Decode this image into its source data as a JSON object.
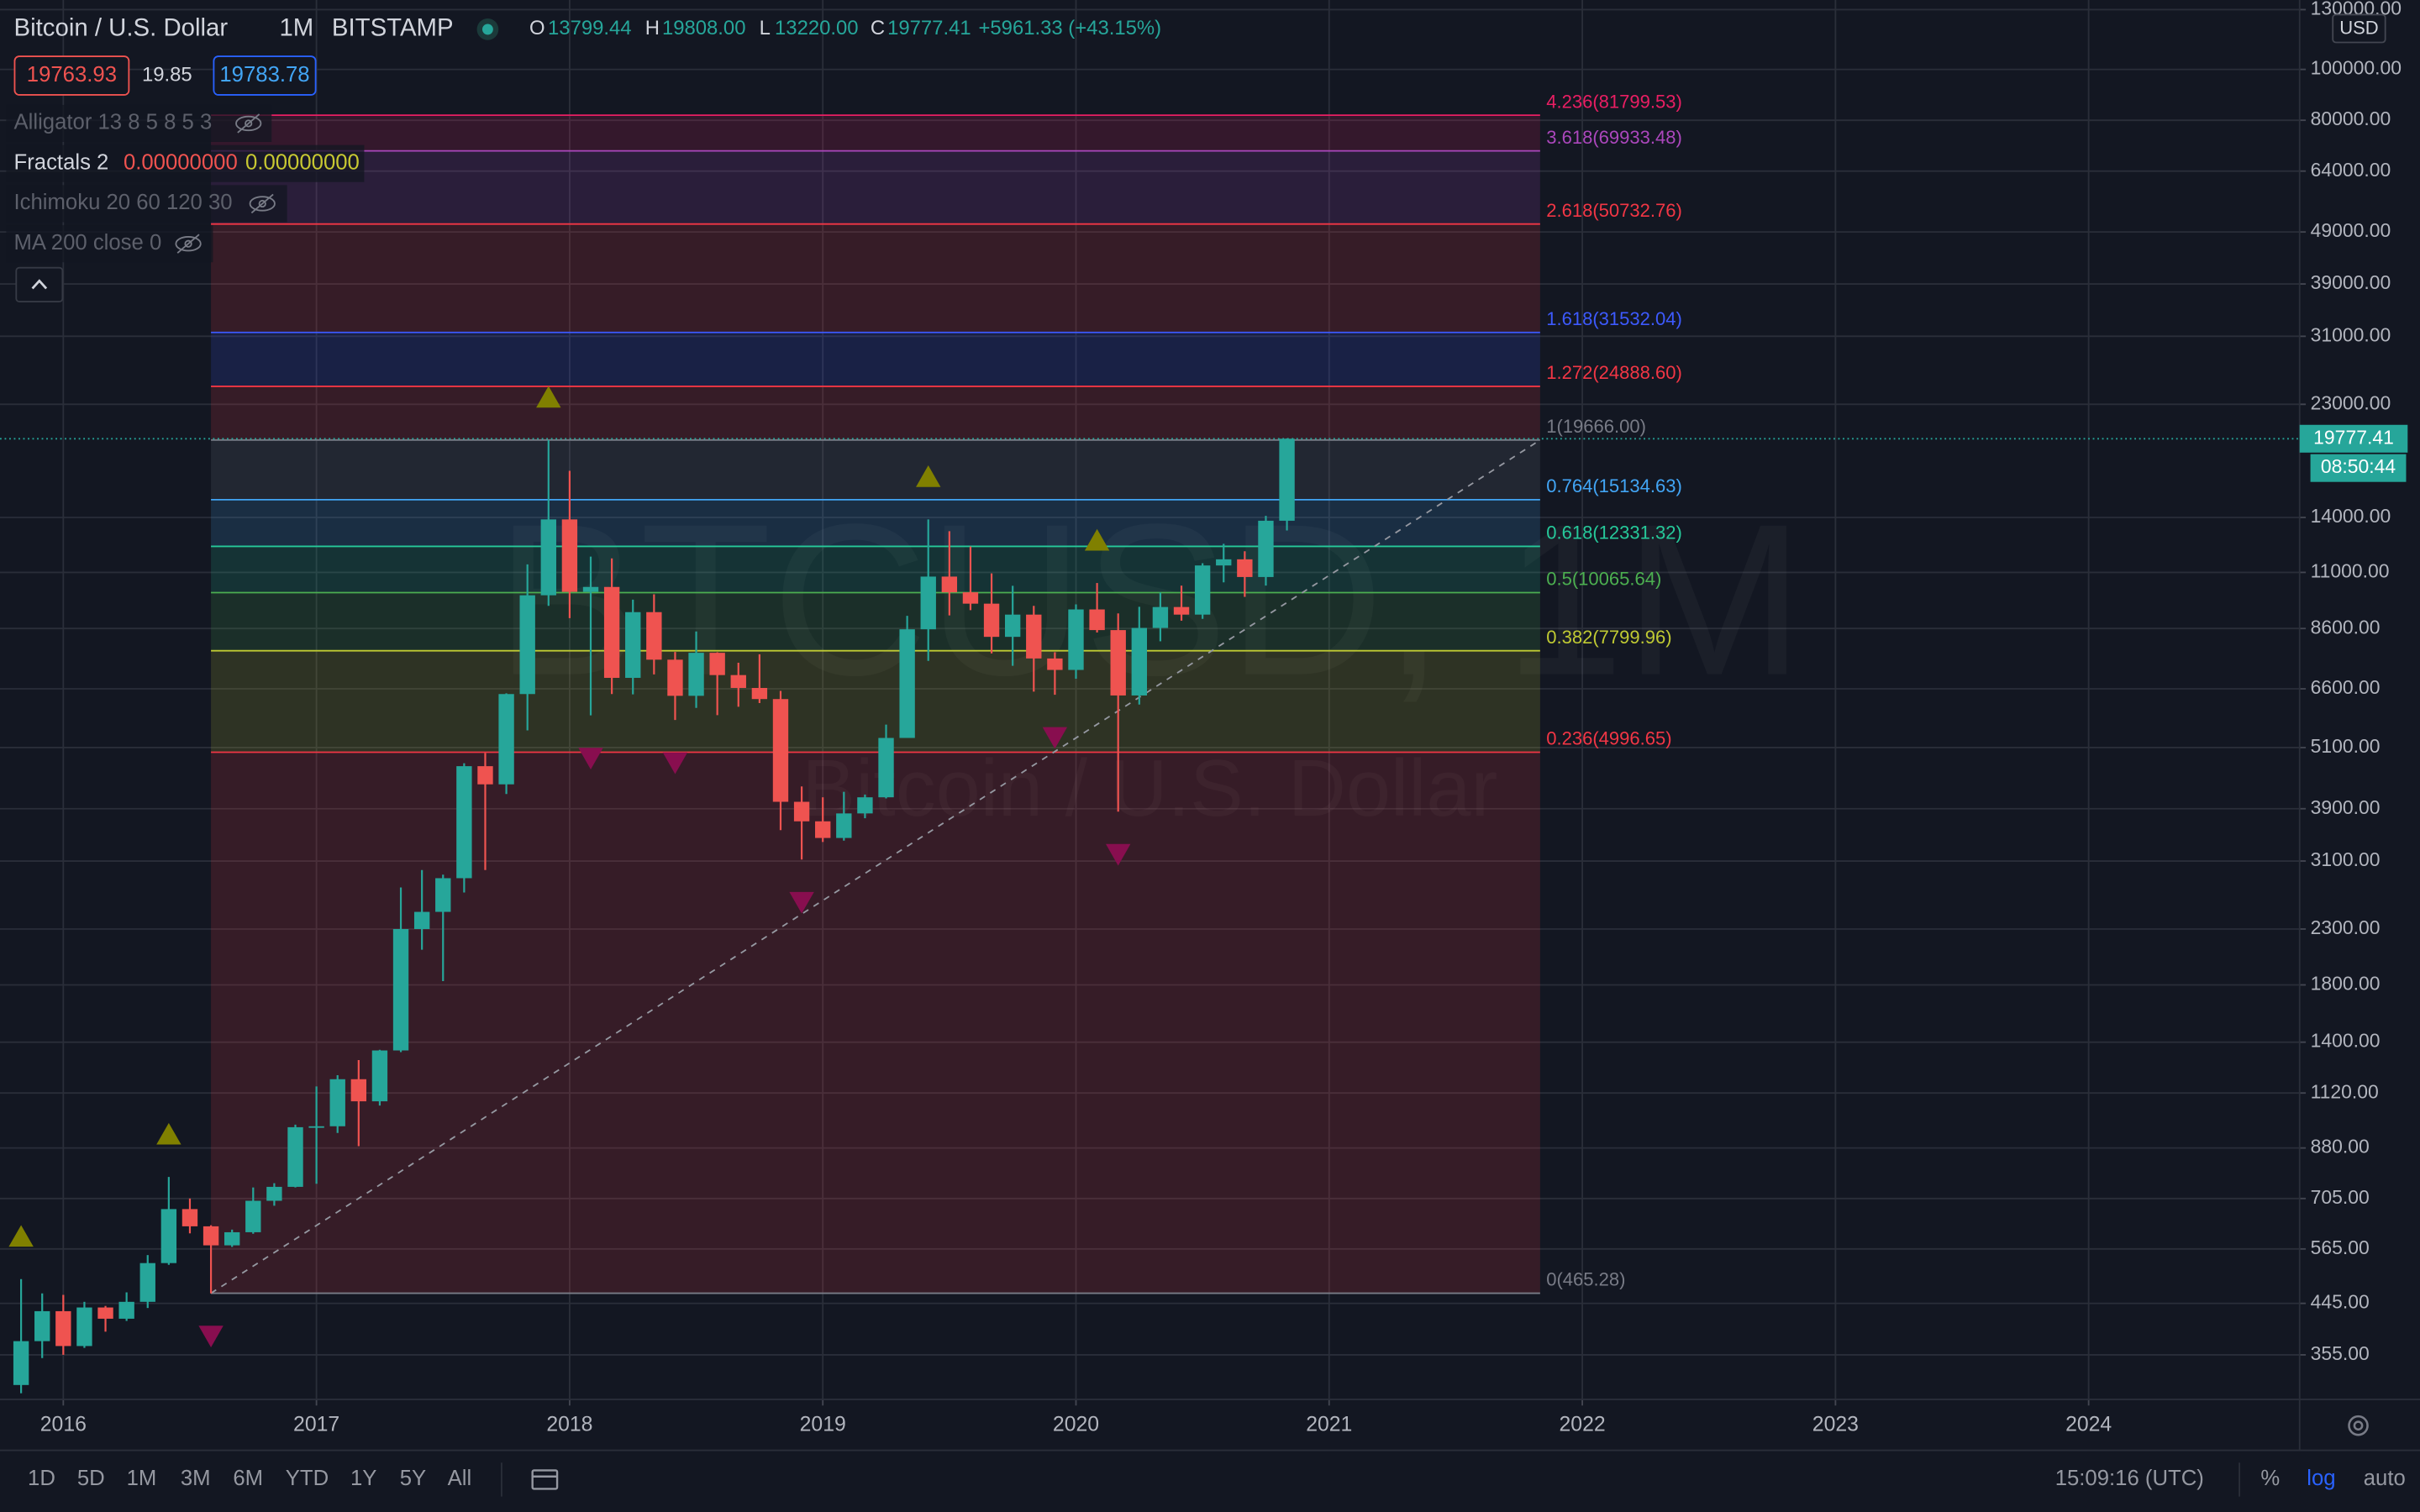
{
  "header": {
    "title": "Bitcoin / U.S. Dollar",
    "interval": "1M",
    "exchange": "BITSTAMP",
    "ohlc": [
      {
        "label": "O",
        "value": "13799.44"
      },
      {
        "label": "H",
        "value": "19808.00"
      },
      {
        "label": "L",
        "value": "13220.00"
      },
      {
        "label": "C",
        "value": "19777.41"
      }
    ],
    "change": "+5961.33 (+43.15%)"
  },
  "order_panel": {
    "sell": "19763.93",
    "spread": "19.85",
    "buy": "19783.78"
  },
  "indicators": [
    {
      "name": "Alligator 13 8 5 8 5 3"
    },
    {
      "name": "Fractals 2",
      "values": [
        "0.00000000",
        "0.00000000"
      ]
    },
    {
      "name": "Ichimoku 20 60 120 30"
    },
    {
      "name": "MA 200 close 0"
    }
  ],
  "watermark": {
    "symbol": "BTCUSD, 1M"
  },
  "toolbar": {
    "ranges": [
      "1D",
      "5D",
      "1M",
      "3M",
      "6M",
      "YTD",
      "1Y",
      "5Y",
      "All"
    ],
    "clock": "15:09:16 (UTC)",
    "scale_buttons": [
      "%",
      "log",
      "auto"
    ]
  },
  "chart_data": {
    "type": "candlestick",
    "currency": "USD",
    "log_scale": true,
    "grid": true,
    "up_color": "#26a69a",
    "down_color": "#ef5350",
    "xlim": [
      "2015-10",
      "2024-11"
    ],
    "xticks": [
      "2016",
      "2017",
      "2018",
      "2019",
      "2020",
      "2021",
      "2022",
      "2023",
      "2024"
    ],
    "ylim": [
      292,
      135600
    ],
    "yticks": [
      {
        "value": 130000,
        "label": "130000.00"
      },
      {
        "value": 100000,
        "label": "100000.00"
      },
      {
        "value": 80000,
        "label": "80000.00"
      },
      {
        "value": 64000,
        "label": "64000.00"
      },
      {
        "value": 49000,
        "label": "49000.00"
      },
      {
        "value": 39000,
        "label": "39000.00"
      },
      {
        "value": 31000,
        "label": "31000.00"
      },
      {
        "value": 23000,
        "label": "23000.00"
      },
      {
        "value": 14000,
        "label": "14000.00"
      },
      {
        "value": 11000,
        "label": "11000.00"
      },
      {
        "value": 8600,
        "label": "8600.00"
      },
      {
        "value": 6600,
        "label": "6600.00"
      },
      {
        "value": 5100,
        "label": "5100.00"
      },
      {
        "value": 3900,
        "label": "3900.00"
      },
      {
        "value": 3100,
        "label": "3100.00"
      },
      {
        "value": 2300,
        "label": "2300.00"
      },
      {
        "value": 1800,
        "label": "1800.00"
      },
      {
        "value": 1400,
        "label": "1400.00"
      },
      {
        "value": 1120,
        "label": "1120.00"
      },
      {
        "value": 880,
        "label": "880.00"
      },
      {
        "value": 705,
        "label": "705.00"
      },
      {
        "value": 565,
        "label": "565.00"
      },
      {
        "value": 445,
        "label": "445.00"
      },
      {
        "value": 355,
        "label": "355.00"
      }
    ],
    "last_price": 19777.41,
    "countdown": "08:50:44",
    "candles": {
      "x": [
        "2015-11",
        "2015-12",
        "2016-01",
        "2016-02",
        "2016-03",
        "2016-04",
        "2016-05",
        "2016-06",
        "2016-07",
        "2016-08",
        "2016-09",
        "2016-10",
        "2016-11",
        "2016-12",
        "2017-01",
        "2017-02",
        "2017-03",
        "2017-04",
        "2017-05",
        "2017-06",
        "2017-07",
        "2017-08",
        "2017-09",
        "2017-10",
        "2017-11",
        "2017-12",
        "2018-01",
        "2018-02",
        "2018-03",
        "2018-04",
        "2018-05",
        "2018-06",
        "2018-07",
        "2018-08",
        "2018-09",
        "2018-10",
        "2018-11",
        "2018-12",
        "2019-01",
        "2019-02",
        "2019-03",
        "2019-04",
        "2019-05",
        "2019-06",
        "2019-07",
        "2019-08",
        "2019-09",
        "2019-10",
        "2019-11",
        "2019-12",
        "2020-01",
        "2020-02",
        "2020-03",
        "2020-04",
        "2020-05",
        "2020-06",
        "2020-07",
        "2020-08",
        "2020-09",
        "2020-10",
        "2020-11"
      ],
      "open": [
        311,
        377,
        430,
        369,
        437,
        416,
        448,
        531,
        673,
        624,
        574,
        608,
        698,
        742,
        964,
        968,
        1190,
        1080,
        1350,
        2300,
        2480,
        2875,
        4700,
        4340,
        6450,
        9950,
        13880,
        10100,
        10320,
        6925,
        9240,
        7500,
        6400,
        7730,
        7010,
        6625,
        6310,
        4020,
        3690,
        3430,
        3820,
        4100,
        5320,
        8570,
        10800,
        10080,
        9590,
        8290,
        9140,
        7540,
        7170,
        9350,
        8540,
        6410,
        8620,
        9450,
        9140,
        11340,
        11650,
        10780,
        13799.44
      ],
      "high": [
        495,
        465,
        462,
        448,
        440,
        467,
        550,
        775,
        705,
        627,
        615,
        740,
        754,
        975,
        1153,
        1211,
        1294,
        1354,
        2760,
        2980,
        2920,
        4760,
        4980,
        6470,
        11395,
        19666,
        17180,
        11790,
        11700,
        9760,
        9990,
        7760,
        8490,
        7750,
        7400,
        7680,
        6540,
        4300,
        4100,
        4200,
        4150,
        5640,
        9090,
        13880,
        13180,
        12320,
        10950,
        10370,
        9500,
        7750,
        9560,
        10500,
        9190,
        9460,
        10070,
        10380,
        11450,
        12470,
        12070,
        14100,
        19808
      ],
      "low": [
        300,
        350,
        355,
        366,
        393,
        412,
        436,
        527,
        605,
        465,
        570,
        604,
        683,
        740,
        752,
        940,
        887,
        1060,
        1340,
        2100,
        1830,
        2700,
        2980,
        4160,
        5500,
        9500,
        9000,
        5873,
        6450,
        6440,
        7030,
        5755,
        6070,
        5880,
        6100,
        6200,
        3550,
        3120,
        3370,
        3390,
        3740,
        4080,
        5320,
        7460,
        9110,
        9320,
        7710,
        7300,
        6520,
        6430,
        6900,
        8450,
        3850,
        6160,
        8130,
        8900,
        8970,
        10530,
        9880,
        10380,
        13220
      ],
      "close": [
        377,
        430,
        369,
        437,
        416,
        448,
        531,
        673,
        624,
        574,
        608,
        698,
        742,
        964,
        968,
        1190,
        1080,
        1350,
        2300,
        2480,
        2875,
        4700,
        4340,
        6450,
        9950,
        13880,
        10100,
        10320,
        6925,
        9240,
        7500,
        6400,
        7730,
        7010,
        6625,
        6310,
        4020,
        3690,
        3430,
        3820,
        4100,
        5320,
        8570,
        10800,
        10080,
        9590,
        8290,
        9140,
        7540,
        7170,
        9350,
        8540,
        6410,
        8620,
        9450,
        9140,
        11340,
        11650,
        10780,
        13800,
        19777.41
      ]
    },
    "fractals": {
      "up_color": "#808000",
      "down_color": "#880e4f",
      "up": [
        "2015-11",
        "2016-06",
        "2017-12",
        "2019-06",
        "2020-02"
      ],
      "down": [
        "2016-08",
        "2018-02",
        "2018-06",
        "2018-12",
        "2019-12",
        "2020-03"
      ]
    },
    "fib": {
      "start": "2016-08",
      "end": "2021-11",
      "levels": [
        {
          "label": "0(465.28)",
          "value": 465.28,
          "color": "#787b86"
        },
        {
          "label": "0.236(4996.65)",
          "value": 4996.65,
          "color": "#f23645"
        },
        {
          "label": "0.382(7799.96)",
          "value": 7799.96,
          "color": "#c0ca33"
        },
        {
          "label": "0.5(10065.64)",
          "value": 10065.64,
          "color": "#4caf50"
        },
        {
          "label": "0.618(12331.32)",
          "value": 12331.32,
          "color": "#26c99a"
        },
        {
          "label": "0.764(15134.63)",
          "value": 15134.63,
          "color": "#42a5f5"
        },
        {
          "label": "1(19666.00)",
          "value": 19666.0,
          "color": "#787b86"
        },
        {
          "label": "1.272(24888.60)",
          "value": 24888.6,
          "color": "#f23645"
        },
        {
          "label": "1.618(31532.04)",
          "value": 31532.04,
          "color": "#3d5afe"
        },
        {
          "label": "2.618(50732.76)",
          "value": 50732.76,
          "color": "#f23645"
        },
        {
          "label": "3.618(69933.48)",
          "value": 69933.48,
          "color": "#ab47bc"
        },
        {
          "label": "4.236(81799.53)",
          "value": 81799.53,
          "color": "#e91e63"
        }
      ]
    }
  }
}
